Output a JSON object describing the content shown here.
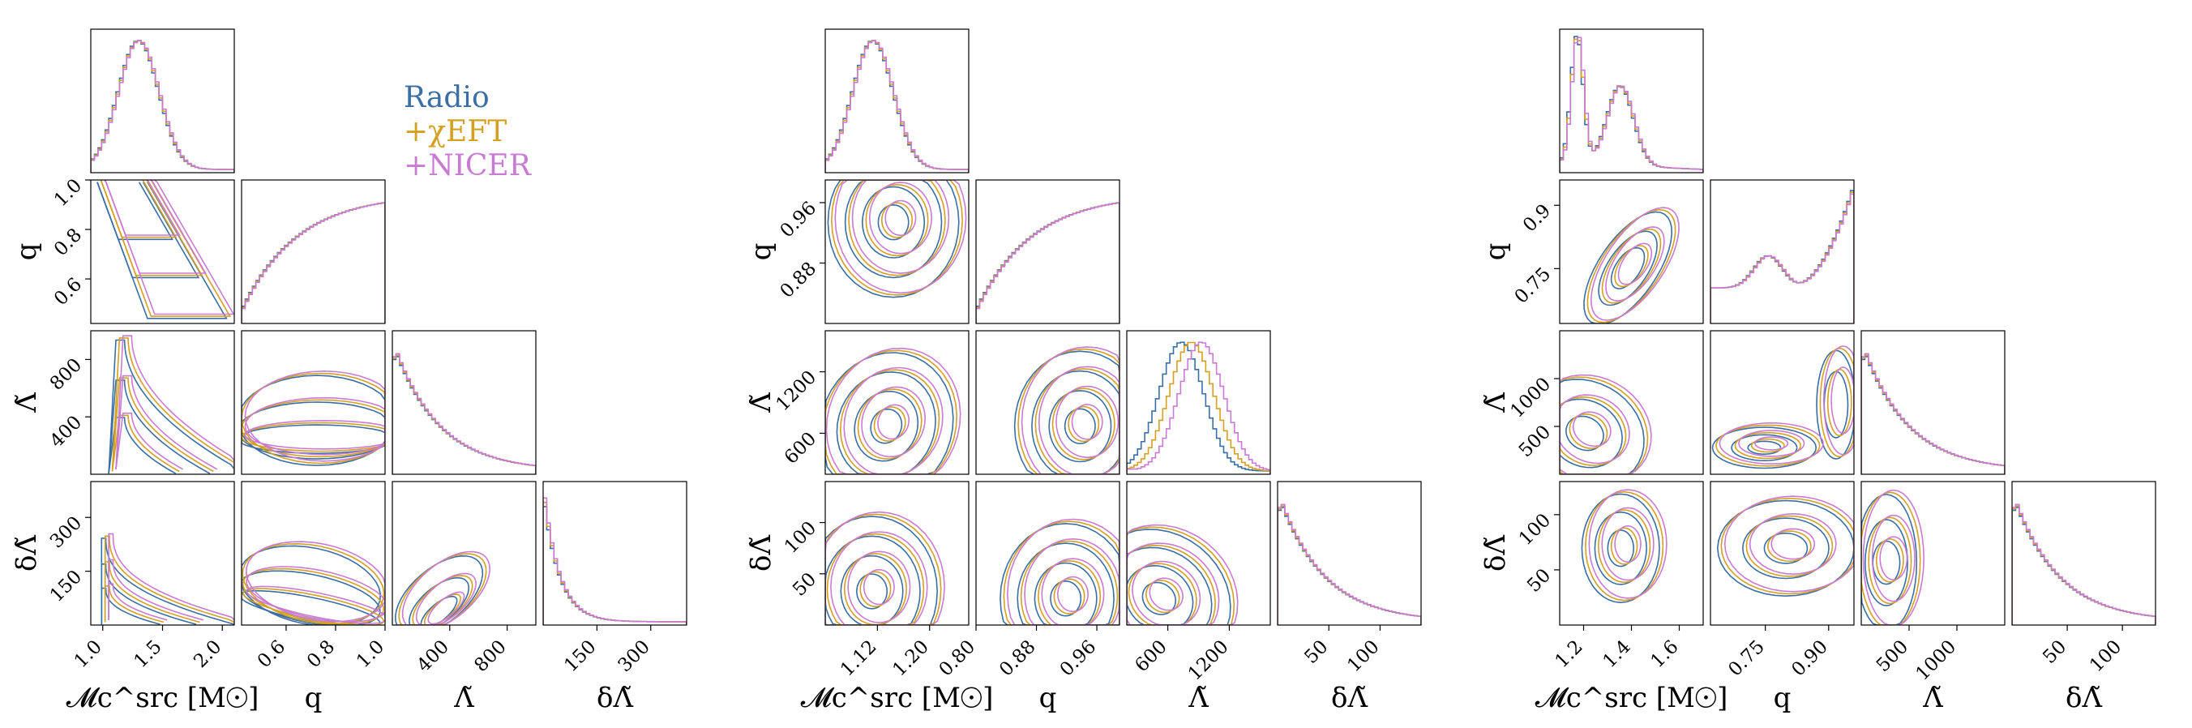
{
  "colors": {
    "radio": "#3a6ea5",
    "chieft": "#d4a020",
    "nicer": "#c97bd3"
  },
  "legend": {
    "items": [
      {
        "label": "Radio",
        "color": "#3a6ea5"
      },
      {
        "label": "+χEFT",
        "color": "#d4a020"
      },
      {
        "label": "+NICER",
        "color": "#c97bd3"
      }
    ]
  },
  "chart_data": [
    {
      "type": "corner",
      "params": [
        "mc",
        "q",
        "lam",
        "dlam"
      ],
      "axis_labels": {
        "mc": "𝓜c^src [M☉]",
        "q": "q",
        "lam": "Λ̃",
        "dlam": "δΛ̃"
      },
      "ranges": {
        "mc": [
          0.9,
          2.1
        ],
        "q": [
          0.42,
          1.0
        ],
        "lam": [
          0,
          1000
        ],
        "dlam": [
          0,
          400
        ]
      },
      "ticks": {
        "mc": [
          "1.0",
          "1.5",
          "2.0"
        ],
        "q": [
          "0.6",
          "0.8",
          "1.0"
        ],
        "lam": [
          "400",
          "800"
        ],
        "dlam": [
          "150",
          "300"
        ]
      },
      "tick_values": {
        "mc": [
          1.0,
          1.5,
          2.0
        ],
        "q": [
          0.6,
          0.8,
          1.0
        ],
        "lam": [
          400,
          800
        ],
        "dlam": [
          150,
          300
        ]
      },
      "row_tick_values": {
        "q": [
          0.6,
          0.8,
          1.0
        ],
        "lam": [
          400,
          800
        ],
        "dlam": [
          150,
          300
        ]
      },
      "diag": {
        "mc": "peak",
        "q": "rise",
        "lam": "decay",
        "dlam": "sharpdecay"
      },
      "peaks": {
        "mc": 1.25,
        "q": 1.0,
        "lam": 60,
        "dlam": 10
      }
    },
    {
      "type": "corner",
      "params": [
        "mc",
        "q",
        "lam",
        "dlam"
      ],
      "axis_labels": {
        "mc": "𝓜c^src [M☉]",
        "q": "q",
        "lam": "Λ̃",
        "dlam": "δΛ̃"
      },
      "ranges": {
        "mc": [
          1.04,
          1.26
        ],
        "q": [
          0.8,
          0.99
        ],
        "lam": [
          200,
          1600
        ],
        "dlam": [
          0,
          140
        ]
      },
      "ticks": {
        "mc": [
          "1.12",
          "1.20"
        ],
        "q": [
          "0.80",
          "0.88",
          "0.96"
        ],
        "lam": [
          "600",
          "1200"
        ],
        "dlam": [
          "50",
          "100"
        ]
      },
      "tick_values": {
        "mc": [
          1.12,
          1.2
        ],
        "q": [
          0.8,
          0.88,
          0.96
        ],
        "lam": [
          600,
          1200
        ],
        "dlam": [
          50,
          100
        ]
      },
      "row_tick_values": {
        "q": [
          0.88,
          0.96
        ],
        "lam": [
          600,
          1200
        ],
        "dlam": [
          50,
          100
        ]
      },
      "diag": {
        "mc": "peak",
        "q": "rise",
        "lam": "peakright",
        "dlam": "decay"
      },
      "peaks": {
        "mc": 1.14,
        "q": 0.99,
        "lam": 650,
        "dlam": 5
      }
    },
    {
      "type": "corner",
      "params": [
        "mc",
        "q",
        "lam",
        "dlam"
      ],
      "axis_labels": {
        "mc": "𝓜c^src [M☉]",
        "q": "q",
        "lam": "Λ̃",
        "dlam": "δΛ̃"
      },
      "ranges": {
        "mc": [
          1.1,
          1.7
        ],
        "q": [
          0.62,
          0.96
        ],
        "lam": [
          0,
          1500
        ],
        "dlam": [
          0,
          130
        ]
      },
      "ticks": {
        "mc": [
          "1.2",
          "1.4",
          "1.6"
        ],
        "q": [
          "0.75",
          "0.90"
        ],
        "lam": [
          "500",
          "1000"
        ],
        "dlam": [
          "50",
          "100"
        ]
      },
      "tick_values": {
        "mc": [
          1.2,
          1.4,
          1.6
        ],
        "q": [
          0.75,
          0.9
        ],
        "lam": [
          500,
          1000
        ],
        "dlam": [
          50,
          100
        ]
      },
      "row_tick_values": {
        "q": [
          0.75,
          0.9
        ],
        "lam": [
          500,
          1000
        ],
        "dlam": [
          50,
          100
        ]
      },
      "diag": {
        "mc": "bimodal",
        "q": "risebump",
        "lam": "decay",
        "dlam": "decay"
      },
      "peaks": {
        "mc": 1.17,
        "q": 0.95,
        "lam": 150,
        "dlam": 5
      }
    }
  ]
}
